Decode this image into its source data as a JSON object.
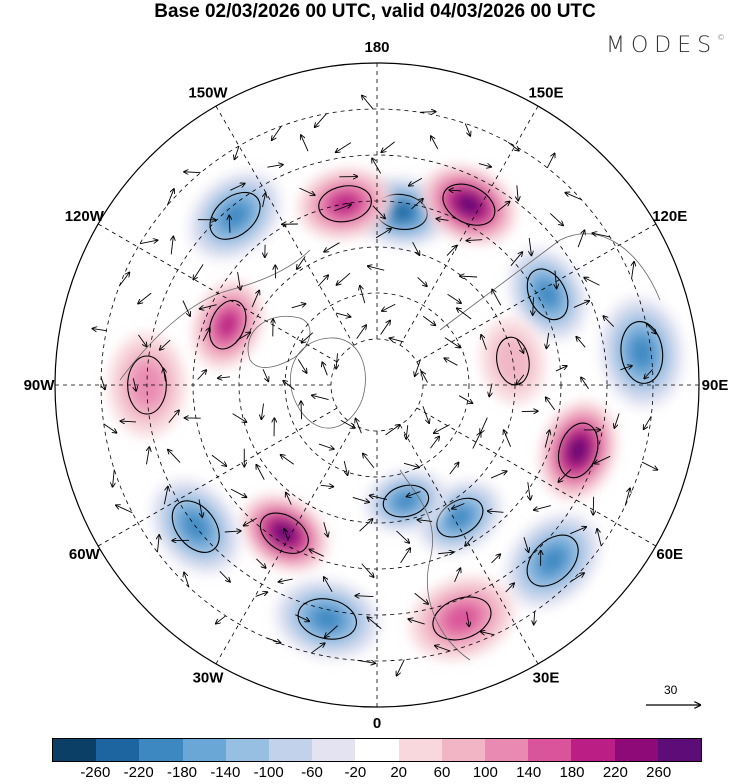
{
  "header": {
    "title": "Base 02/03/2026 00 UTC, valid 04/03/2026 00 UTC",
    "brand": "MODES",
    "brand_mark": "©"
  },
  "map": {
    "projection": "north polar stereographic",
    "longitude_labels": [
      {
        "text": "180",
        "lon": 180
      },
      {
        "text": "150E",
        "lon": 150
      },
      {
        "text": "120E",
        "lon": 120
      },
      {
        "text": "90E",
        "lon": 90
      },
      {
        "text": "60E",
        "lon": 60
      },
      {
        "text": "30E",
        "lon": 30
      },
      {
        "text": "0",
        "lon": 0
      },
      {
        "text": "30W",
        "lon": -30
      },
      {
        "text": "60W",
        "lon": -60
      },
      {
        "text": "90W",
        "lon": -90
      },
      {
        "text": "120W",
        "lon": -120
      },
      {
        "text": "150W",
        "lon": -150
      }
    ],
    "latitude_circles": [
      80,
      70,
      60,
      50,
      40,
      30
    ],
    "anomaly_centers": [
      {
        "lon": 172,
        "lat": 52,
        "value": -200
      },
      {
        "lon": 153,
        "lat": 46,
        "value": 240
      },
      {
        "lon": -170,
        "lat": 50,
        "value": 170
      },
      {
        "lon": -140,
        "lat": 42,
        "value": -170
      },
      {
        "lon": -112,
        "lat": 55,
        "value": 180
      },
      {
        "lon": 118,
        "lat": 48,
        "value": -170
      },
      {
        "lon": 97,
        "lat": 32,
        "value": -150
      },
      {
        "lon": 72,
        "lat": 44,
        "value": 250
      },
      {
        "lon": 32,
        "lat": 56,
        "value": -170
      },
      {
        "lon": 14,
        "lat": 64,
        "value": -150
      },
      {
        "lon": 45,
        "lat": 36,
        "value": -180
      },
      {
        "lon": -32,
        "lat": 52,
        "value": 230
      },
      {
        "lon": -52,
        "lat": 40,
        "value": -160
      },
      {
        "lon": -12,
        "lat": 38,
        "value": -170
      },
      {
        "lon": 20,
        "lat": 36,
        "value": 130
      },
      {
        "lon": 100,
        "lat": 60,
        "value": 60
      },
      {
        "lon": -90,
        "lat": 40,
        "value": 70
      }
    ],
    "wind_reference": {
      "label": "30"
    }
  },
  "legend": {
    "levels": [
      "-260",
      "-220",
      "-180",
      "-140",
      "-100",
      "-60",
      "-20",
      "20",
      "60",
      "100",
      "140",
      "180",
      "220",
      "260"
    ],
    "colors": [
      "#0b3f66",
      "#1d65a0",
      "#3e88c2",
      "#6aa6d6",
      "#97bfe2",
      "#c2d2ea",
      "#e3e3f1",
      "#ffffff",
      "#f8d8dc",
      "#f1b5c6",
      "#e98ab2",
      "#d9549a",
      "#bb1f85",
      "#8e0a78",
      "#5c0d78"
    ]
  }
}
